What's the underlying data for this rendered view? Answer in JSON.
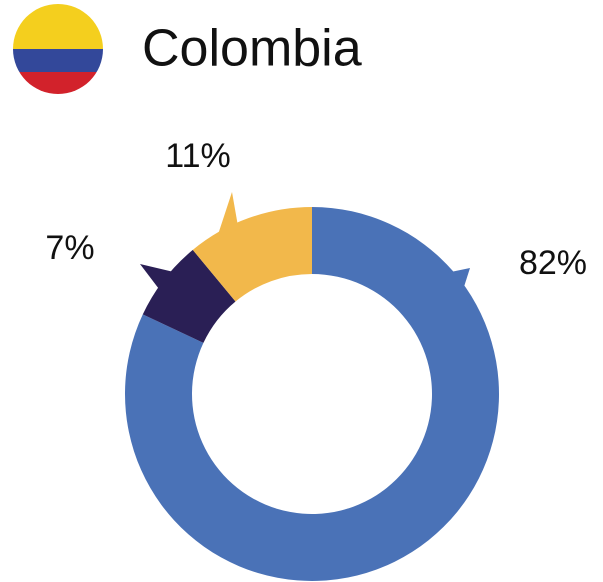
{
  "chart_data": {
    "type": "donut",
    "title": "Colombia",
    "values": [
      82,
      7,
      11
    ],
    "value_labels": [
      "82%",
      "7%",
      "11%"
    ],
    "colors": [
      "#4a72b7",
      "#2a1f55",
      "#f2b84b"
    ]
  }
}
